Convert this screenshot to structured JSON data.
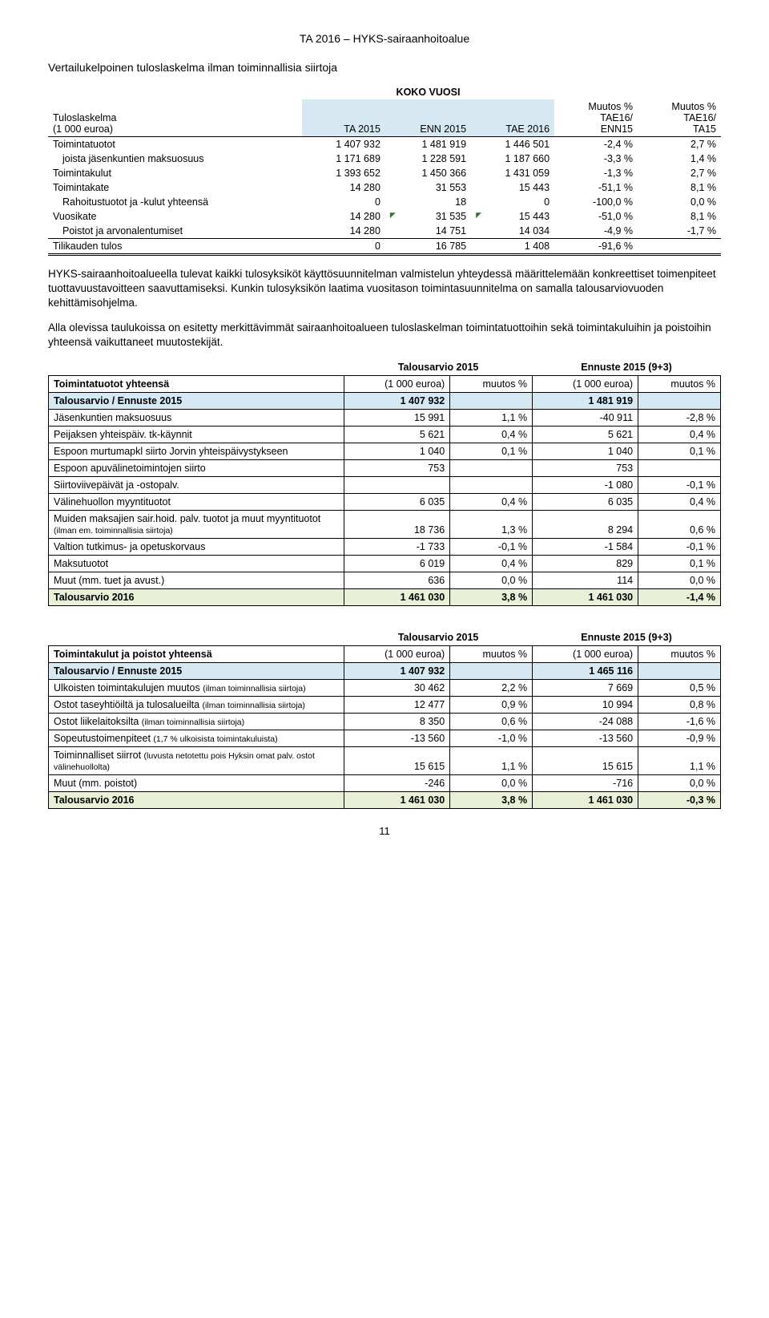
{
  "header": "TA 2016 – HYKS-sairaanhoitoalue",
  "section_title": "Vertailukelpoinen tuloslaskelma ilman toiminnallisia siirtoja",
  "koko_vuosi": "KOKO VUOSI",
  "t1": {
    "cols": {
      "c0a": "Tuloslaskelma",
      "c0b": "(1 000 euroa)",
      "c1": "TA 2015",
      "c2": "ENN 2015",
      "c3": "TAE 2016",
      "c4a": "Muutos %",
      "c4b": "TAE16/",
      "c4c": "ENN15",
      "c5a": "Muutos %",
      "c5b": "TAE16/",
      "c5c": "TA15"
    },
    "rows": [
      {
        "label": "Toimintatuotot",
        "v1": "1 407 932",
        "v2": "1 481 919",
        "v3": "1 446 501",
        "v4": "-2,4 %",
        "v5": "2,7 %"
      },
      {
        "label": "joista jäsenkuntien maksuosuus",
        "indent": true,
        "v1": "1 171 689",
        "v2": "1 228 591",
        "v3": "1 187 660",
        "v4": "-3,3 %",
        "v5": "1,4 %"
      },
      {
        "label": "Toimintakulut",
        "v1": "1 393 652",
        "v2": "1 450 366",
        "v3": "1 431 059",
        "v4": "-1,3 %",
        "v5": "2,7 %"
      },
      {
        "label": "Toimintakate",
        "v1": "14 280",
        "v2": "31 553",
        "v3": "15 443",
        "v4": "-51,1 %",
        "v5": "8,1 %"
      },
      {
        "label": "Rahoitustuotot ja -kulut yhteensä",
        "indent": true,
        "v1": "0",
        "v2": "18",
        "v3": "0",
        "v4": "-100,0 %",
        "v5": "0,0 %"
      },
      {
        "label": "Vuosikate",
        "v1": "14 280",
        "v2": "31 535",
        "v3": "15 443",
        "v4": "-51,0 %",
        "v5": "8,1 %",
        "tick2": true,
        "tick3": true
      },
      {
        "label": "Poistot ja arvonalentumiset",
        "indent": true,
        "v1": "14 280",
        "v2": "14 751",
        "v3": "14 034",
        "v4": "-4,9 %",
        "v5": "-1,7 %"
      },
      {
        "label": "Tilikauden tulos",
        "last": true,
        "v1": "0",
        "v2": "16 785",
        "v3": "1 408",
        "v4": "-91,6 %",
        "v5": ""
      }
    ]
  },
  "para1": "HYKS-sairaanhoitoalueella tulevat kaikki tulosyksiköt käyttösuunnitelman valmistelun yhteydessä määrittelemään konkreettiset toimenpiteet tuottavuustavoitteen saavuttamiseksi. Kunkin tulosyksikön laatima vuositason toimintasuunnitelma on samalla talousarviovuoden kehittämisohjelma.",
  "para2": "Alla olevissa taulukoissa on esitetty merkittävimmät sairaanhoitoalueen tuloslaskelman toimintatuottoihin sekä toimintakuluihin ja poistoihin yhteensä vaikuttaneet muutostekijät.",
  "t2a": {
    "top1": "Talousarvio 2015",
    "top2": "Ennuste 2015 (9+3)",
    "row_head_label": "Toimintatuotot yhteensä",
    "col_euroa": "(1 000 euroa)",
    "col_muutos": "muutos %",
    "sec_label": "Talousarvio / Ennuste 2015",
    "sec_v1": "1 407 932",
    "sec_v2": "1 481 919",
    "rows": [
      {
        "label": "Jäsenkuntien maksuosuus",
        "v1": "15 991",
        "p1": "1,1 %",
        "v2": "-40 911",
        "p2": "-2,8 %"
      },
      {
        "label": "Peijaksen yhteispäiv. tk-käynnit",
        "v1": "5 621",
        "p1": "0,4 %",
        "v2": "5 621",
        "p2": "0,4 %"
      },
      {
        "label": "Espoon murtumapkl siirto Jorvin yhteispäivystykseen",
        "v1": "1 040",
        "p1": "0,1 %",
        "v2": "1 040",
        "p2": "0,1 %"
      },
      {
        "label": "Espoon apuvälinetoimintojen siirto",
        "v1": "753",
        "p1": "",
        "v2": "753",
        "p2": ""
      },
      {
        "label": "Siirtoviivepäivät ja -ostopalv.",
        "v1": "",
        "p1": "",
        "v2": "-1 080",
        "p2": "-0,1 %"
      },
      {
        "label": "Välinehuollon myyntituotot",
        "v1": "6 035",
        "p1": "0,4 %",
        "v2": "6 035",
        "p2": "0,4 %"
      },
      {
        "label": "Muiden maksajien sair.hoid. palv. tuotot ja muut myyntituotot (ilman em. toiminnallisia siirtoja)",
        "small": true,
        "v1": "18 736",
        "p1": "1,3 %",
        "v2": "8 294",
        "p2": "0,6 %"
      },
      {
        "label": "Valtion tutkimus- ja opetuskorvaus",
        "v1": "-1 733",
        "p1": "-0,1 %",
        "v2": "-1 584",
        "p2": "-0,1 %"
      },
      {
        "label": "Maksutuotot",
        "v1": "6 019",
        "p1": "0,4 %",
        "v2": "829",
        "p2": "0,1 %"
      },
      {
        "label": "Muut (mm. tuet ja avust.)",
        "v1": "636",
        "p1": "0,0 %",
        "v2": "114",
        "p2": "0,0 %"
      }
    ],
    "sum_label": "Talousarvio 2016",
    "sum_v1": "1 461 030",
    "sum_p1": "3,8 %",
    "sum_v2": "1 461 030",
    "sum_p2": "-1,4 %"
  },
  "t2b": {
    "top1": "Talousarvio 2015",
    "top2": "Ennuste 2015 (9+3)",
    "row_head_label": "Toimintakulut ja poistot yhteensä",
    "col_euroa": "(1 000 euroa)",
    "col_muutos": "muutos %",
    "sec_label": "Talousarvio / Ennuste 2015",
    "sec_v1": "1 407 932",
    "sec_v2": "1 465 116",
    "rows": [
      {
        "label": "Ulkoisten toimintakulujen muutos (ilman toiminnallisia siirtoja)",
        "small": true,
        "v1": "30 462",
        "p1": "2,2 %",
        "v2": "7 669",
        "p2": "0,5 %"
      },
      {
        "label": "Ostot taseyhtiöiltä ja tulosalueilta (ilman toiminnallisia siirtoja)",
        "small": true,
        "v1": "12 477",
        "p1": "0,9 %",
        "v2": "10 994",
        "p2": "0,8 %"
      },
      {
        "label": "Ostot liikelaitoksilta (ilman toiminnallisia siirtoja)",
        "small": true,
        "v1": "8 350",
        "p1": "0,6 %",
        "v2": "-24 088",
        "p2": "-1,6 %"
      },
      {
        "label": "Sopeutustoimenpiteet (1,7 % ulkoisista toimintakuluista)",
        "small": true,
        "v1": "-13 560",
        "p1": "-1,0 %",
        "v2": "-13 560",
        "p2": "-0,9 %"
      },
      {
        "label": "Toiminnalliset siirrot (luvusta netotettu pois Hyksin omat palv. ostot välinehuollolta)",
        "small": true,
        "v1": "15 615",
        "p1": "1,1 %",
        "v2": "15 615",
        "p2": "1,1 %"
      },
      {
        "label": "Muut (mm. poistot)",
        "v1": "-246",
        "p1": "0,0 %",
        "v2": "-716",
        "p2": "0,0 %"
      }
    ],
    "sum_label": "Talousarvio 2016",
    "sum_v1": "1 461 030",
    "sum_p1": "3,8 %",
    "sum_v2": "1 461 030",
    "sum_p2": "-0,3 %"
  },
  "page_num": "11"
}
